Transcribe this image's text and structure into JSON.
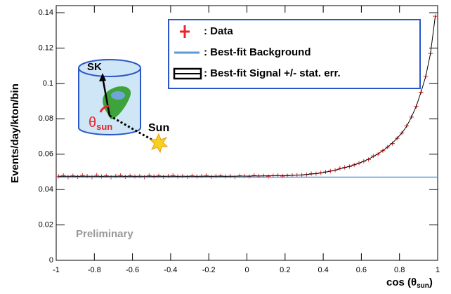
{
  "chart_data": {
    "type": "line",
    "ylabel": "Events/day/kton/bin",
    "xlabel": {
      "main": "cos (θ",
      "sub": "sun",
      "close": ")"
    },
    "annotations": {
      "preliminary": "Preliminary",
      "sk": "SK",
      "theta": "θ",
      "theta_sub": "sun",
      "sun": "Sun"
    },
    "xlim": [
      -1,
      1
    ],
    "ylim": [
      0,
      0.144
    ],
    "xticks": [
      -1,
      -0.8,
      -0.6,
      -0.4,
      -0.2,
      0,
      0.2,
      0.4,
      0.6,
      0.8,
      1
    ],
    "yticks": [
      0,
      0.02,
      0.04,
      0.06,
      0.08,
      0.1,
      0.12,
      0.14
    ],
    "legend": "top-right",
    "series": [
      {
        "name": ": Data",
        "color": "#e8262a",
        "style": "points",
        "x": [
          -0.9875,
          -0.9625,
          -0.9375,
          -0.9125,
          -0.8875,
          -0.8625,
          -0.8375,
          -0.8125,
          -0.7875,
          -0.7625,
          -0.7375,
          -0.7125,
          -0.6875,
          -0.6625,
          -0.6375,
          -0.6125,
          -0.5875,
          -0.5625,
          -0.5375,
          -0.5125,
          -0.4875,
          -0.4625,
          -0.4375,
          -0.4125,
          -0.3875,
          -0.3625,
          -0.3375,
          -0.3125,
          -0.2875,
          -0.2625,
          -0.2375,
          -0.2125,
          -0.1875,
          -0.1625,
          -0.1375,
          -0.1125,
          -0.0875,
          -0.0625,
          -0.0375,
          -0.0125,
          0.0125,
          0.0375,
          0.0625,
          0.0875,
          0.1125,
          0.1375,
          0.1625,
          0.1875,
          0.2125,
          0.2375,
          0.2625,
          0.2875,
          0.3125,
          0.3375,
          0.3625,
          0.3875,
          0.4125,
          0.4375,
          0.4625,
          0.4875,
          0.5125,
          0.5375,
          0.5625,
          0.5875,
          0.6125,
          0.6375,
          0.6625,
          0.6875,
          0.7125,
          0.7375,
          0.7625,
          0.7875,
          0.8125,
          0.8375,
          0.8625,
          0.8875,
          0.9125,
          0.9375,
          0.9625,
          0.9875
        ],
        "values": [
          0.0475,
          0.048,
          0.047,
          0.0478,
          0.0472,
          0.048,
          0.0476,
          0.047,
          0.0482,
          0.0474,
          0.0478,
          0.047,
          0.0476,
          0.048,
          0.0472,
          0.0478,
          0.0474,
          0.0476,
          0.047,
          0.048,
          0.0474,
          0.0478,
          0.0472,
          0.0476,
          0.048,
          0.0474,
          0.0476,
          0.0472,
          0.0478,
          0.0474,
          0.0476,
          0.048,
          0.0472,
          0.0476,
          0.0478,
          0.0474,
          0.0476,
          0.047,
          0.0478,
          0.0476,
          0.0474,
          0.048,
          0.0476,
          0.0478,
          0.0474,
          0.0478,
          0.048,
          0.0476,
          0.0478,
          0.048,
          0.0482,
          0.0482,
          0.0485,
          0.049,
          0.049,
          0.0495,
          0.05,
          0.0505,
          0.051,
          0.052,
          0.0525,
          0.053,
          0.054,
          0.055,
          0.056,
          0.057,
          0.059,
          0.06,
          0.062,
          0.064,
          0.066,
          0.069,
          0.072,
          0.076,
          0.081,
          0.087,
          0.095,
          0.104,
          0.117,
          0.138
        ]
      },
      {
        "name": ": Best-fit Background",
        "color": "#5b9bd5",
        "style": "line",
        "x": [
          -1,
          1
        ],
        "values": [
          0.047,
          0.047
        ]
      },
      {
        "name": ": Best-fit Signal +/- stat. err.",
        "color": "#000000",
        "style": "line",
        "x": [
          -0.9875,
          -0.9625,
          -0.9375,
          -0.9125,
          -0.8875,
          -0.8625,
          -0.8375,
          -0.8125,
          -0.7875,
          -0.7625,
          -0.7375,
          -0.7125,
          -0.6875,
          -0.6625,
          -0.6375,
          -0.6125,
          -0.5875,
          -0.5625,
          -0.5375,
          -0.5125,
          -0.4875,
          -0.4625,
          -0.4375,
          -0.4125,
          -0.3875,
          -0.3625,
          -0.3375,
          -0.3125,
          -0.2875,
          -0.2625,
          -0.2375,
          -0.2125,
          -0.1875,
          -0.1625,
          -0.1375,
          -0.1125,
          -0.0875,
          -0.0625,
          -0.0375,
          -0.0125,
          0.0125,
          0.0375,
          0.0625,
          0.0875,
          0.1125,
          0.1375,
          0.1625,
          0.1875,
          0.2125,
          0.2375,
          0.2625,
          0.2875,
          0.3125,
          0.3375,
          0.3625,
          0.3875,
          0.4125,
          0.4375,
          0.4625,
          0.4875,
          0.5125,
          0.5375,
          0.5625,
          0.5875,
          0.6125,
          0.6375,
          0.6625,
          0.6875,
          0.7125,
          0.7375,
          0.7625,
          0.7875,
          0.8125,
          0.8375,
          0.8625,
          0.8875,
          0.9125,
          0.9375,
          0.9625,
          0.9875
        ],
        "values": [
          0.0475,
          0.0475,
          0.0475,
          0.0475,
          0.0475,
          0.0475,
          0.0475,
          0.0475,
          0.0475,
          0.0475,
          0.0475,
          0.0475,
          0.0475,
          0.0475,
          0.0475,
          0.0475,
          0.0475,
          0.0475,
          0.0475,
          0.0475,
          0.0475,
          0.0475,
          0.0475,
          0.0475,
          0.0475,
          0.0475,
          0.0475,
          0.0475,
          0.0475,
          0.0475,
          0.0475,
          0.0475,
          0.0475,
          0.0475,
          0.0475,
          0.0475,
          0.0475,
          0.0475,
          0.0476,
          0.0476,
          0.0476,
          0.0477,
          0.0477,
          0.0477,
          0.0478,
          0.0478,
          0.0479,
          0.0479,
          0.048,
          0.0481,
          0.0482,
          0.0483,
          0.0485,
          0.0488,
          0.049,
          0.0494,
          0.0499,
          0.0504,
          0.051,
          0.0517,
          0.0524,
          0.0531,
          0.054,
          0.0549,
          0.056,
          0.0572,
          0.0587,
          0.0602,
          0.062,
          0.064,
          0.0663,
          0.069,
          0.072,
          0.0758,
          0.081,
          0.087,
          0.095,
          0.104,
          0.117,
          0.138
        ]
      }
    ]
  }
}
